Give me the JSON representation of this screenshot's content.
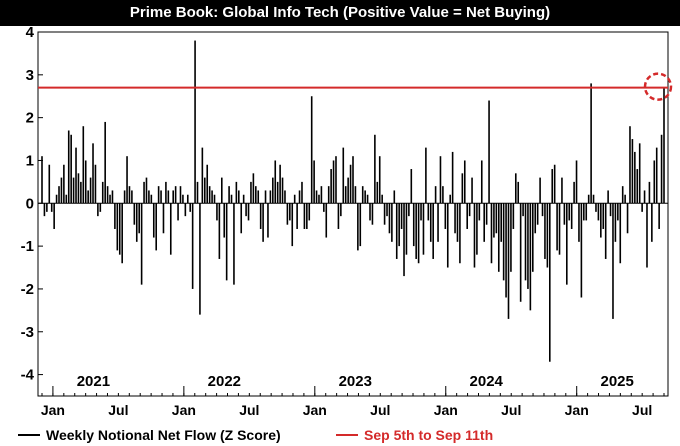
{
  "title": "Prime Book: Global Info Tech (Positive Value = Net Buying)",
  "colors": {
    "bars": "#000000",
    "threshold": "#d42a2a",
    "highlight": "#d42a2a"
  },
  "legend": {
    "series_label": "Weekly Notional Net Flow (Z Score)",
    "threshold_label": "Sep 5th to Sep 11th"
  },
  "chart_data": {
    "type": "bar",
    "title": "Prime Book: Global Info Tech (Positive Value = Net Buying)",
    "xlabel": "",
    "ylabel": "",
    "ylim": [
      -4.5,
      4
    ],
    "y_ticks": [
      4,
      3,
      2,
      1,
      0,
      -1,
      -2,
      -3,
      -4
    ],
    "x_start": "2020-12",
    "x_end": "2025-09",
    "year_labels": [
      "2021",
      "2022",
      "2023",
      "2024",
      "2025"
    ],
    "month_labels": [
      "Jan",
      "Jul",
      "Jan",
      "Jul",
      "Jan",
      "Jul",
      "Jan",
      "Jul",
      "Jan",
      "Jul"
    ],
    "reference_line": {
      "value": 2.7,
      "label": "Sep 5th to Sep 11th"
    },
    "highlight_last_point": true,
    "grid": false,
    "legend_position": "bottom",
    "series": [
      {
        "name": "Weekly Notional Net Flow (Z Score)",
        "values": [
          1.1,
          -0.3,
          -0.2,
          0.9,
          -0.2,
          -0.6,
          0.2,
          0.4,
          0.6,
          0.9,
          0.2,
          1.7,
          1.6,
          0.6,
          1.3,
          0.7,
          0.5,
          1.8,
          1.0,
          0.3,
          0.6,
          1.4,
          0.9,
          -0.3,
          -0.2,
          0.5,
          1.9,
          0.4,
          0.2,
          0.3,
          -0.6,
          -1.1,
          -1.2,
          -1.4,
          0.3,
          1.1,
          0.4,
          0.3,
          -0.5,
          -0.9,
          -0.7,
          -1.9,
          0.5,
          0.6,
          0.3,
          0.2,
          -0.8,
          -1.1,
          0.4,
          0.3,
          -0.7,
          0.5,
          0.3,
          -1.2,
          0.3,
          0.4,
          -0.4,
          0.4,
          0.2,
          -0.3,
          0.2,
          -0.2,
          -2.0,
          3.8,
          0.5,
          -2.6,
          1.3,
          0.6,
          0.9,
          0.4,
          0.3,
          0.2,
          -0.4,
          -1.3,
          0.6,
          -0.8,
          -1.8,
          0.4,
          0.2,
          -1.9,
          0.5,
          0.3,
          -0.7,
          0.2,
          -0.3,
          -0.4,
          0.5,
          0.7,
          0.4,
          0.3,
          -0.6,
          -0.9,
          0.3,
          -0.8,
          0.3,
          0.6,
          1.0,
          0.5,
          0.9,
          0.6,
          0.3,
          -0.5,
          -0.4,
          -1.0,
          0.2,
          -0.6,
          0.3,
          0.5,
          -0.6,
          -0.6,
          -0.4,
          2.5,
          1.0,
          0.3,
          0.2,
          0.4,
          -0.2,
          -0.8,
          0.4,
          0.8,
          1.0,
          1.1,
          -0.6,
          -0.3,
          1.3,
          0.4,
          0.6,
          0.9,
          1.1,
          0.4,
          -1.1,
          -1.0,
          0.4,
          0.3,
          0.2,
          -0.4,
          -0.5,
          1.6,
          0.5,
          1.1,
          0.2,
          -0.5,
          -0.3,
          -0.7,
          -0.9,
          0.3,
          -1.3,
          -1.0,
          -0.6,
          -1.7,
          -1.2,
          -0.3,
          0.8,
          -1.0,
          -1.3,
          -1.4,
          -0.4,
          -1.2,
          1.3,
          -0.4,
          -0.9,
          -1.3,
          0.4,
          -0.9,
          1.1,
          0.4,
          -0.6,
          -1.5,
          0.2,
          1.2,
          -0.7,
          -0.9,
          -1.4,
          0.7,
          1.0,
          -0.6,
          -0.3,
          0.6,
          -1.5,
          -1.2,
          -0.4,
          1.0,
          -0.9,
          -0.5,
          2.4,
          -1.4,
          -0.8,
          -0.7,
          -1.6,
          -0.9,
          -1.8,
          -2.2,
          -2.7,
          -1.6,
          -0.6,
          0.7,
          0.5,
          -2.3,
          -0.3,
          -1.8,
          -2.0,
          -2.5,
          -1.6,
          -0.7,
          -0.5,
          0.6,
          -0.3,
          -1.3,
          -1.5,
          -3.7,
          0.8,
          0.9,
          -1.1,
          -1.2,
          0.6,
          -0.5,
          -1.9,
          -0.4,
          -0.6,
          0.5,
          1.0,
          -0.9,
          -2.2,
          -0.4,
          -0.4,
          0.2,
          2.8,
          0.2,
          -0.2,
          -0.4,
          -0.8,
          -0.6,
          -1.3,
          0.3,
          -0.3,
          -2.7,
          -0.9,
          -0.4,
          -1.4,
          0.4,
          0.2,
          -0.7,
          1.8,
          1.5,
          1.2,
          0.8,
          1.4,
          -0.2,
          0.3,
          -1.5,
          0.5,
          -0.9,
          1.0,
          1.3,
          -0.6,
          1.6,
          2.7
        ]
      }
    ]
  }
}
